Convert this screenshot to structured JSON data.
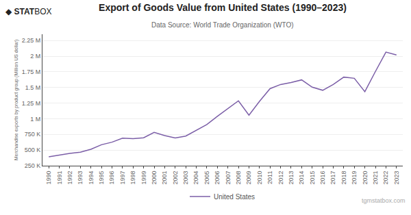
{
  "chart_data": {
    "type": "line",
    "title": "Export of Goods Value from United States (1990–2023)",
    "subtitle": "Data Source: World Trade Organization (WTO)",
    "ylabel": "Merchandise exports by product group (Million US dollar)",
    "annotations": [
      "◆",
      "STAT",
      "BOX",
      "tgmstatbox.com"
    ],
    "x": [
      1990,
      1991,
      1992,
      1993,
      1994,
      1995,
      1996,
      1997,
      1998,
      1999,
      2000,
      2001,
      2002,
      2003,
      2004,
      2005,
      2006,
      2007,
      2008,
      2009,
      2010,
      2011,
      2012,
      2013,
      2014,
      2015,
      2016,
      2017,
      2018,
      2019,
      2020,
      2021,
      2022,
      2023
    ],
    "series": [
      {
        "name": "United States",
        "color": "#7B5EA7",
        "values": [
          393000,
          421000,
          448000,
          465000,
          513000,
          585000,
          626000,
          689000,
          683000,
          696000,
          782000,
          731000,
          693000,
          724000,
          820000,
          907000,
          1038000,
          1163000,
          1287000,
          1057000,
          1278000,
          1481000,
          1547000,
          1579000,
          1621000,
          1505000,
          1455000,
          1547000,
          1665000,
          1646000,
          1432000,
          1754000,
          2065000,
          2020000
        ]
      }
    ],
    "xlim": [
      1989.4,
      2023.6
    ],
    "xticks": [
      1990,
      1991,
      1992,
      1993,
      1994,
      1995,
      1996,
      1997,
      1998,
      1999,
      2000,
      2001,
      2002,
      2003,
      2004,
      2005,
      2006,
      2007,
      2008,
      2009,
      2010,
      2011,
      2012,
      2013,
      2014,
      2015,
      2016,
      2017,
      2018,
      2019,
      2020,
      2021,
      2022,
      2023
    ],
    "ylim": [
      250000,
      2350000
    ],
    "yticks": [
      {
        "value": 250000,
        "label": "250 K"
      },
      {
        "value": 500000,
        "label": "500 K"
      },
      {
        "value": 750000,
        "label": "750 K"
      },
      {
        "value": 1000000,
        "label": "1 M"
      },
      {
        "value": 1250000,
        "label": "1.25 M"
      },
      {
        "value": 1500000,
        "label": "1.5 M"
      },
      {
        "value": 1750000,
        "label": "1.75 M"
      },
      {
        "value": 2000000,
        "label": "2 M"
      },
      {
        "value": 2250000,
        "label": "2.25 M"
      }
    ],
    "grid": true,
    "legend": "bottom"
  }
}
